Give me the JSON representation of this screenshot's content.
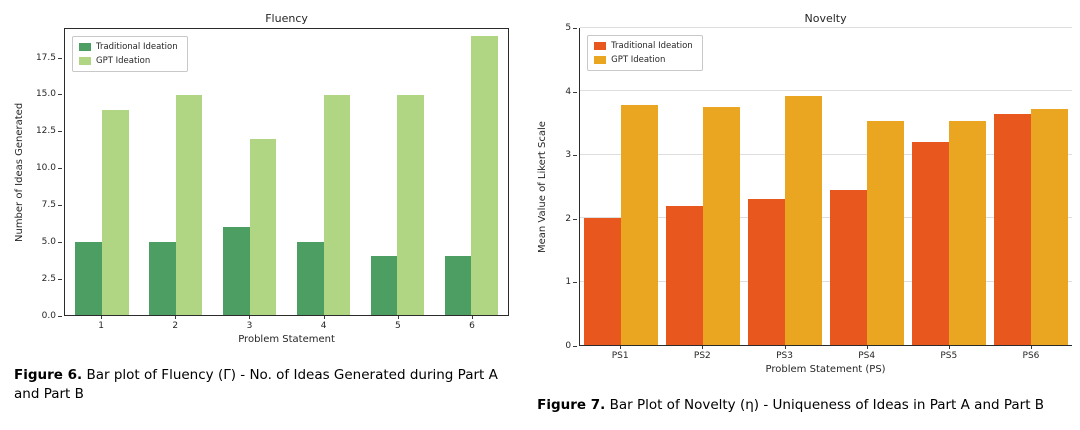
{
  "figures": [
    {
      "caption_label": "Figure 6.",
      "caption_text": " Bar plot of Fluency (Γ) - No. of Ideas Generated during Part A and Part B"
    },
    {
      "caption_label": "Figure 7.",
      "caption_text": " Bar Plot of Novelty (η) - Uniqueness of Ideas in Part A and Part B"
    }
  ],
  "chart_data": [
    {
      "type": "bar",
      "title": "Fluency",
      "xlabel": "Problem Statement",
      "ylabel": "Number of Ideas Generated",
      "categories": [
        "1",
        "2",
        "3",
        "4",
        "5",
        "6"
      ],
      "series": [
        {
          "name": "Traditional Ideation",
          "color": "#4d9e63",
          "values": [
            5,
            5,
            6,
            5,
            4,
            4
          ]
        },
        {
          "name": "GPT Ideation",
          "color": "#b0d684",
          "values": [
            14,
            15,
            12,
            15,
            15,
            19
          ]
        }
      ],
      "ylim": [
        0,
        19.5
      ],
      "yticks": [
        0,
        2.5,
        5,
        7.5,
        10,
        12.5,
        15,
        17.5
      ],
      "ytick_decimals": 1,
      "grid": false,
      "box": true,
      "legend_position": "top-left"
    },
    {
      "type": "bar",
      "title": "Novelty",
      "xlabel": "Problem Statement (PS)",
      "ylabel": "Mean Value of Likert Scale",
      "categories": [
        "PS1",
        "PS2",
        "PS3",
        "PS4",
        "PS5",
        "PS6"
      ],
      "series": [
        {
          "name": "Traditional Ideation",
          "color": "#e8571d",
          "values": [
            2.0,
            2.2,
            2.3,
            2.45,
            3.2,
            3.65
          ]
        },
        {
          "name": "GPT Ideation",
          "color": "#eaa621",
          "values": [
            3.78,
            3.75,
            3.93,
            3.53,
            3.53,
            3.73
          ]
        }
      ],
      "ylim": [
        0,
        5
      ],
      "yticks": [
        0,
        1,
        2,
        3,
        4,
        5
      ],
      "ytick_decimals": 0,
      "grid": true,
      "box": false,
      "legend_position": "top-left"
    }
  ]
}
